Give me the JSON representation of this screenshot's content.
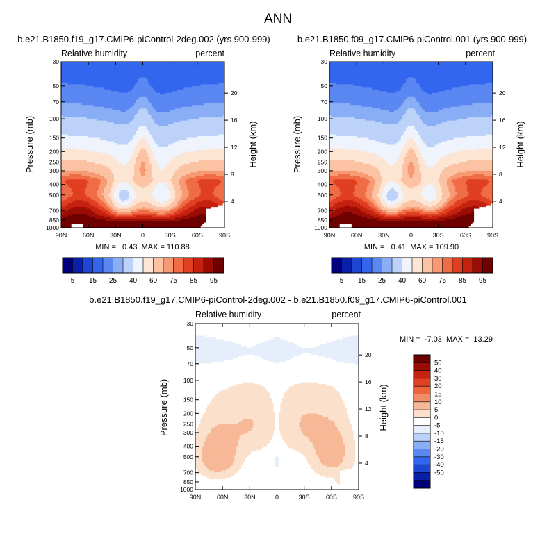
{
  "figure_title": "ANN",
  "colors": {
    "abs_palette": [
      "#00007f",
      "#0a1fa8",
      "#1f46d2",
      "#3366ee",
      "#5a87f2",
      "#8aaef5",
      "#bcd2f8",
      "#eef3fc",
      "#fde5d4",
      "#fbc3a4",
      "#f79a73",
      "#f06c47",
      "#e03f22",
      "#c4220f",
      "#9a0c04",
      "#6e0000"
    ],
    "diff_palette": [
      "#00007f",
      "#0a1fa8",
      "#1f46d2",
      "#3366ee",
      "#5a87f2",
      "#8aaef5",
      "#bcd2f8",
      "#e6eefc",
      "#ffffff",
      "#fbe0cb",
      "#f7b897",
      "#f38d66",
      "#ee6339",
      "#e03f22",
      "#c4220f",
      "#9a0c04",
      "#6e0000"
    ]
  },
  "chart_data": [
    {
      "type": "heatmap",
      "id": "top-left",
      "title": "b.e21.B1850.f19_g17.CMIP6-piControl-2deg.002 (yrs 900-999)",
      "variable": "Relative humidity",
      "units": "percent",
      "ylabel": "Pressure (mb)",
      "ylabel_right": "Height (km)",
      "x_ticks": [
        "90N",
        "60N",
        "30N",
        "0",
        "30S",
        "60S",
        "90S"
      ],
      "pressure_ticks": [
        "30",
        "50",
        "70",
        "100",
        "150",
        "200",
        "250",
        "300",
        "400",
        "500",
        "700",
        "850",
        "1000"
      ],
      "height_ticks": [
        "20",
        "16",
        "12",
        "8",
        "4"
      ],
      "stats": "MIN =   0.43  MAX = 110.88",
      "min": 0.43,
      "max": 110.88,
      "colorbar_labels": [
        "5",
        "15",
        "25",
        "40",
        "60",
        "75",
        "85",
        "95"
      ],
      "field_variant": "a"
    },
    {
      "type": "heatmap",
      "id": "top-right",
      "title": "b.e21.B1850.f09_g17.CMIP6-piControl.001 (yrs 900-999)",
      "variable": "Relative humidity",
      "units": "percent",
      "ylabel": "Pressure (mb)",
      "ylabel_right": "Height (km)",
      "x_ticks": [
        "90N",
        "60N",
        "30N",
        "0",
        "30S",
        "60S",
        "90S"
      ],
      "pressure_ticks": [
        "30",
        "50",
        "70",
        "100",
        "150",
        "200",
        "250",
        "300",
        "400",
        "500",
        "700",
        "850",
        "1000"
      ],
      "height_ticks": [
        "20",
        "16",
        "12",
        "8",
        "4"
      ],
      "stats": "MIN =   0.41  MAX = 109.90",
      "min": 0.41,
      "max": 109.9,
      "colorbar_labels": [
        "5",
        "15",
        "25",
        "40",
        "60",
        "75",
        "85",
        "95"
      ],
      "field_variant": "b"
    },
    {
      "type": "heatmap",
      "id": "bottom-diff",
      "title": "b.e21.B1850.f19_g17.CMIP6-piControl-2deg.002 - b.e21.B1850.f09_g17.CMIP6-piControl.001",
      "variable": "Relative humidity",
      "units": "percent",
      "ylabel": "Pressure (mb)",
      "ylabel_right": "Height (km)",
      "x_ticks": [
        "90N",
        "60N",
        "30N",
        "0",
        "30S",
        "60S",
        "90S"
      ],
      "pressure_ticks": [
        "30",
        "50",
        "70",
        "100",
        "150",
        "200",
        "250",
        "300",
        "400",
        "500",
        "700",
        "850",
        "1000"
      ],
      "height_ticks": [
        "20",
        "16",
        "12",
        "8",
        "4"
      ],
      "stats": "MIN =  -7.03  MAX =  13.29",
      "min": -7.03,
      "max": 13.29,
      "colorbar_labels": [
        "50",
        "40",
        "30",
        "20",
        "15",
        "10",
        "5",
        "0",
        "-5",
        "-10",
        "-15",
        "-20",
        "-30",
        "-40",
        "-50"
      ],
      "field_variant": "diff"
    }
  ]
}
